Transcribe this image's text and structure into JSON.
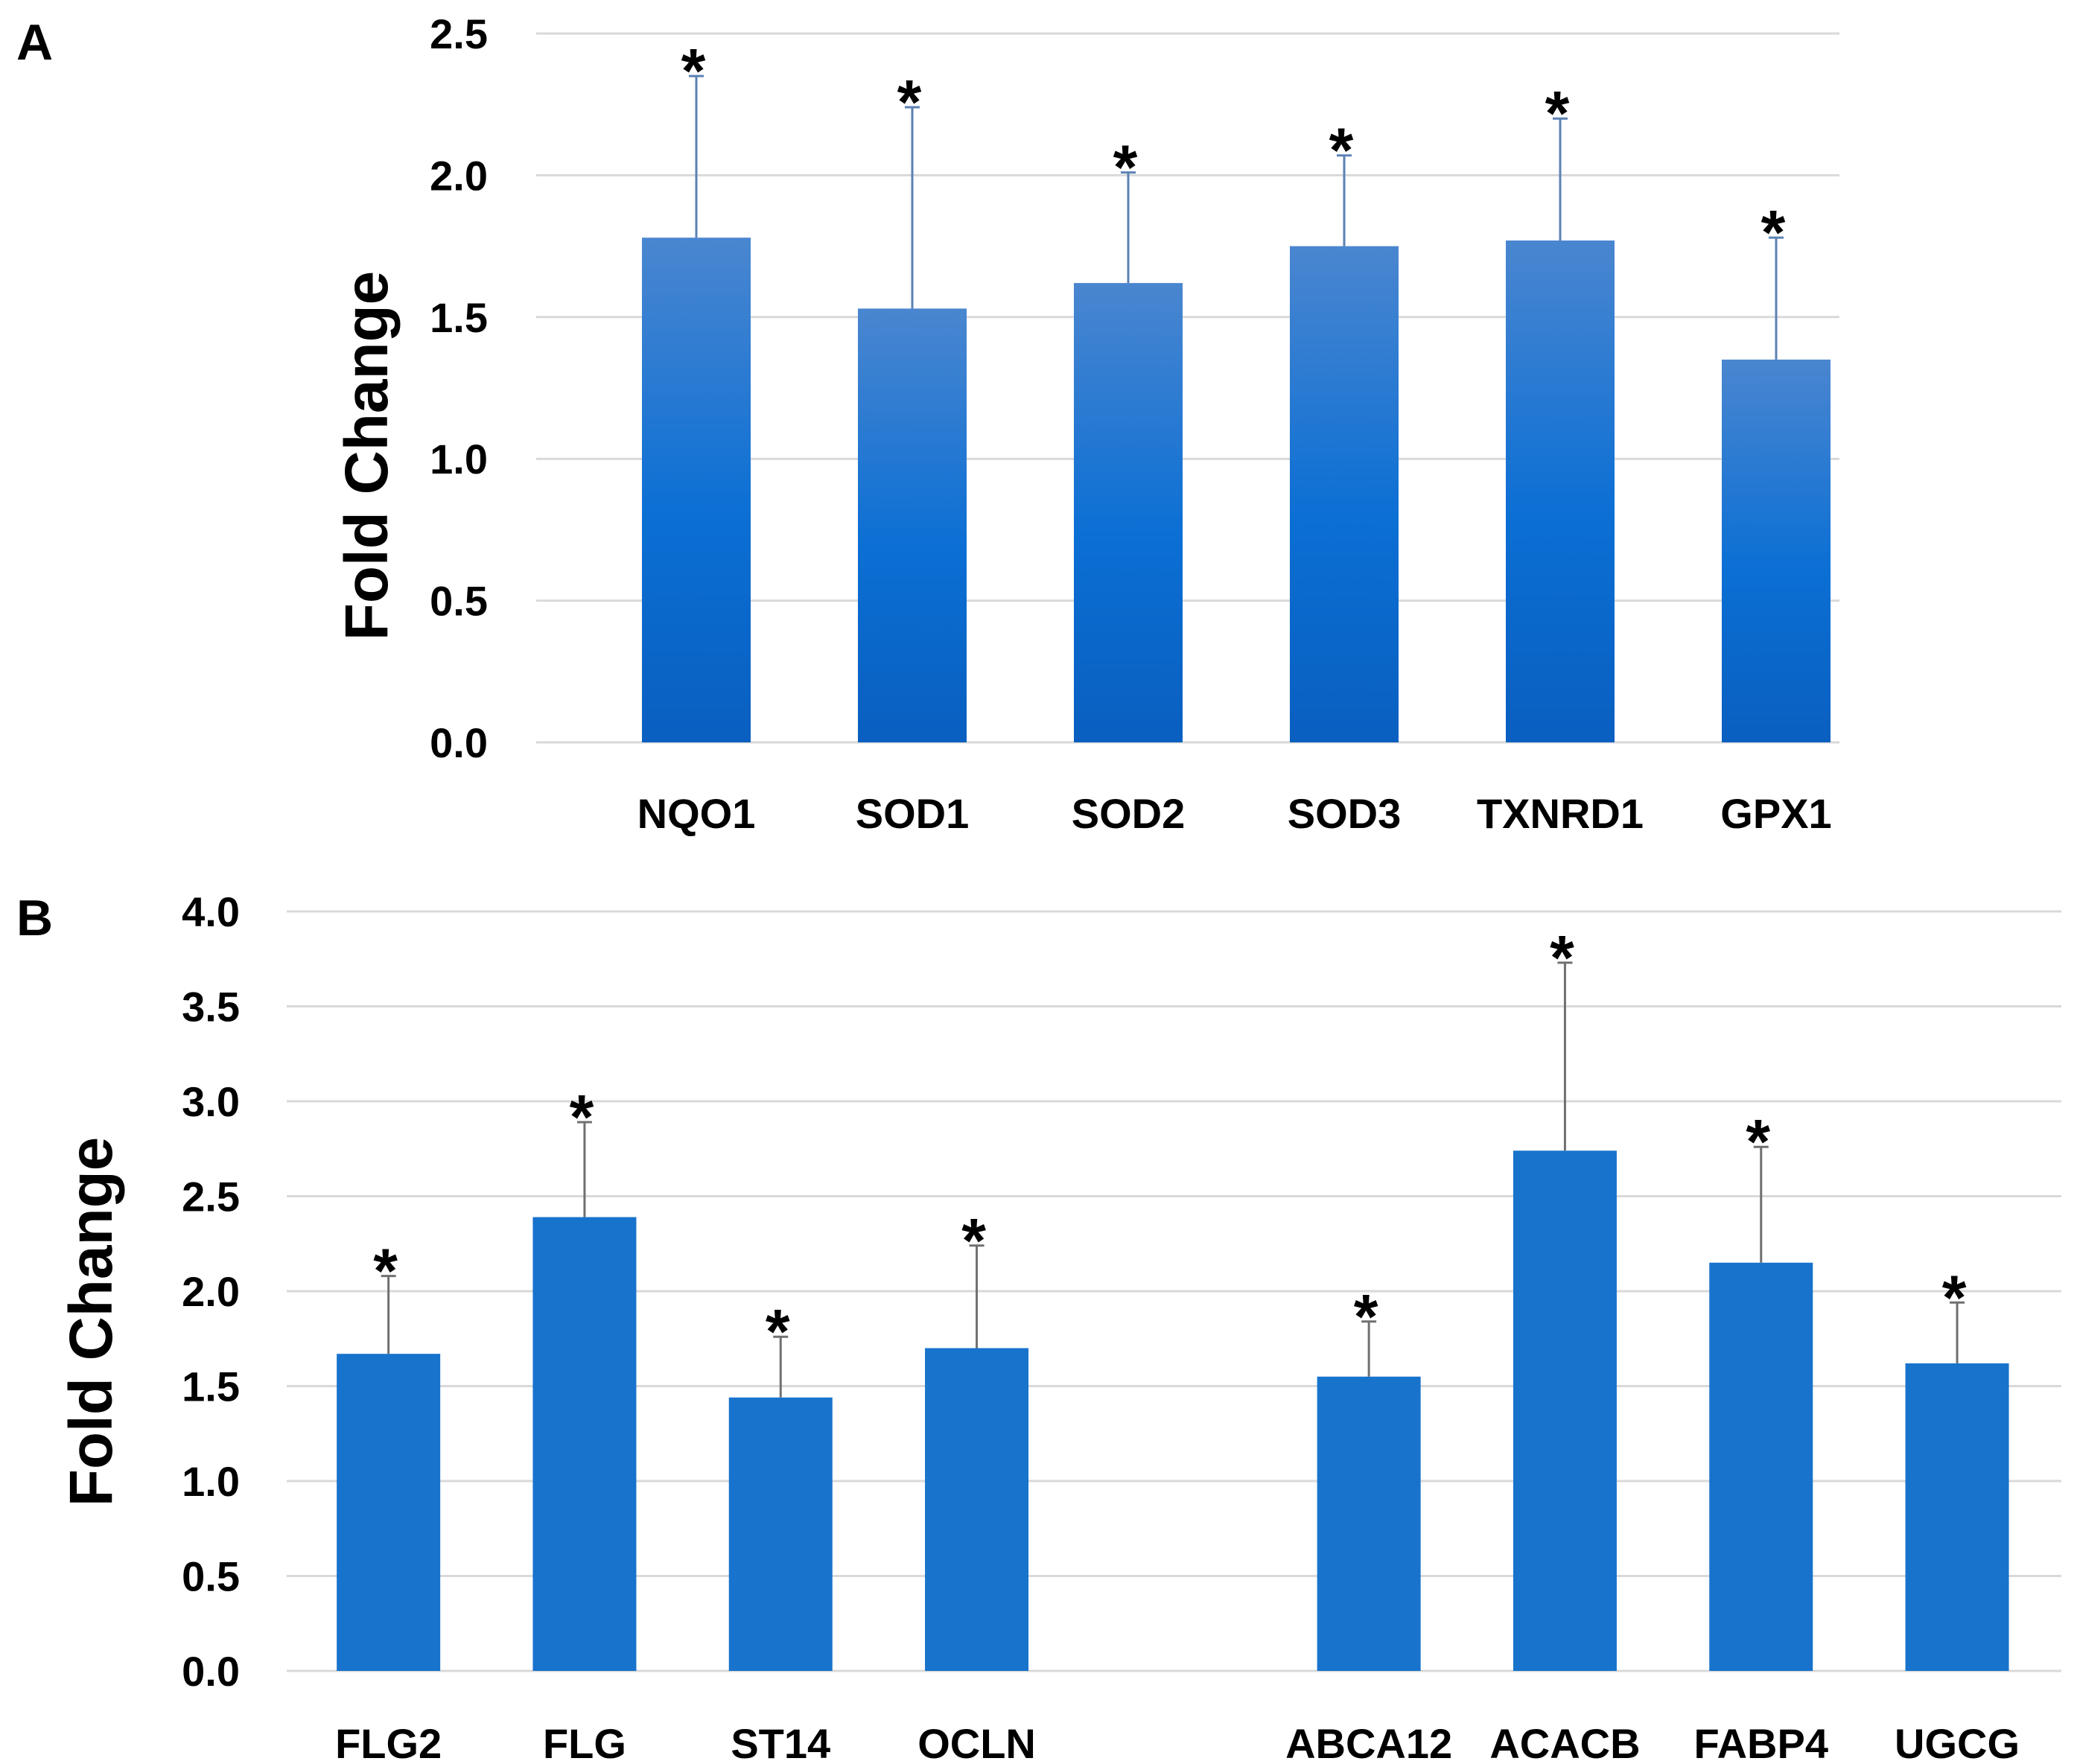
{
  "panels": {
    "a": {
      "letter": "A"
    },
    "b": {
      "letter": "B"
    }
  },
  "colors": {
    "bar_top_a": "#4a86d0",
    "bar_mid_a": "#0b6fd4",
    "bar_bottom_a": "#0a5fc0",
    "bar_b": "#1873cc",
    "error_bar_a": "#5b82b5",
    "error_bar_b": "#707070",
    "grid": "#d9d9d9"
  },
  "chart_data": [
    {
      "id": "a",
      "type": "bar",
      "title": "",
      "xlabel": "",
      "ylabel": "Fold Change",
      "ylim": [
        0,
        2.5
      ],
      "yticks": [
        0.0,
        0.5,
        1.0,
        1.5,
        2.0,
        2.5
      ],
      "ytick_labels": [
        "0.0",
        "0.5",
        "1.0",
        "1.5",
        "2.0",
        "2.5"
      ],
      "categories": [
        "NQO1",
        "SOD1",
        "SOD2",
        "SOD3",
        "TXNRD1",
        "GPX1"
      ],
      "values": [
        1.78,
        1.53,
        1.62,
        1.75,
        1.77,
        1.35
      ],
      "error_upper": [
        2.35,
        2.24,
        2.01,
        2.07,
        2.2,
        1.78
      ],
      "annotations": [
        "*",
        "*",
        "*",
        "*",
        "*",
        "*"
      ],
      "grid": true,
      "bar_style": "gradient"
    },
    {
      "id": "b",
      "type": "bar",
      "title": "",
      "xlabel": "",
      "ylabel": "Fold Change",
      "ylim": [
        0,
        4.0
      ],
      "yticks": [
        0.0,
        0.5,
        1.0,
        1.5,
        2.0,
        2.5,
        3.0,
        3.5,
        4.0
      ],
      "ytick_labels": [
        "0.0",
        "0.5",
        "1.0",
        "1.5",
        "2.0",
        "2.5",
        "3.0",
        "3.5",
        "4.0"
      ],
      "categories": [
        "FLG2",
        "FLG",
        "ST14",
        "OCLN",
        "",
        "ABCA12",
        "ACACB",
        "FABP4",
        "UGCG"
      ],
      "values": [
        1.67,
        2.39,
        1.44,
        1.7,
        null,
        1.55,
        2.74,
        2.15,
        1.62
      ],
      "error_upper": [
        2.08,
        2.89,
        1.76,
        2.24,
        null,
        1.84,
        3.73,
        2.76,
        1.94
      ],
      "annotations": [
        "*",
        "*",
        "*",
        "*",
        "",
        "*",
        "*",
        "*",
        "*"
      ],
      "grid": true,
      "bar_style": "solid"
    }
  ]
}
